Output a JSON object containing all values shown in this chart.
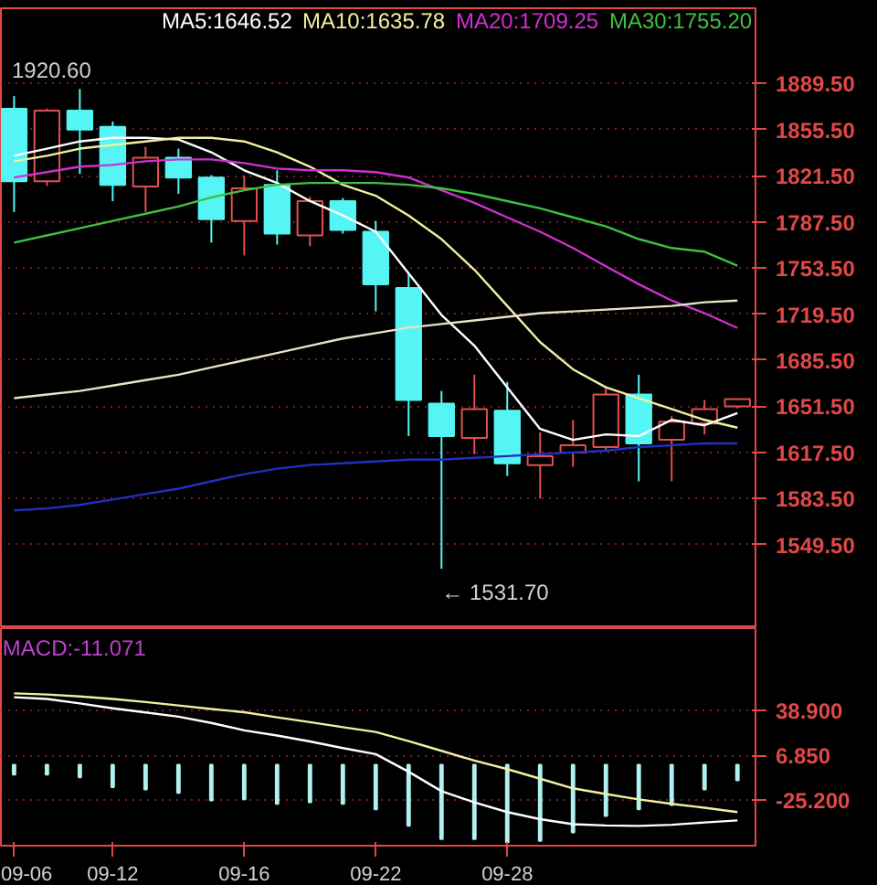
{
  "chart_data": [
    {
      "type": "candlestick",
      "categories": [
        null,
        null,
        null,
        null,
        null,
        null,
        null,
        null,
        null,
        null,
        null,
        null,
        null,
        null,
        null,
        null,
        null,
        null,
        null,
        null,
        null,
        null,
        null
      ],
      "ohlc": [
        [
          1870.8,
          1880.2,
          1794.8,
          1817.5
        ],
        [
          1817.5,
          1871,
          1814,
          1869.5
        ],
        [
          1869.5,
          1885.5,
          1822.8,
          1855.5
        ],
        [
          1857.5,
          1861.5,
          1802.8,
          1814.8
        ],
        [
          1813.5,
          1842.8,
          1794.8,
          1834.8
        ],
        [
          1834.8,
          1841.5,
          1808.2,
          1820.2
        ],
        [
          1820.2,
          1822,
          1772.2,
          1789.5
        ],
        [
          1788.2,
          1821.5,
          1762.8,
          1812.2
        ],
        [
          1814.8,
          1825.5,
          1770.8,
          1778.8
        ],
        [
          1777.5,
          1806,
          1769.5,
          1802.8
        ],
        [
          1802.8,
          1805,
          1778.8,
          1781.5
        ],
        [
          1780.2,
          1788.2,
          1721.5,
          1741.5
        ],
        [
          1738.8,
          1749.5,
          1629.5,
          1656.2
        ],
        [
          1653.5,
          1662.8,
          1531.7,
          1629.5
        ],
        [
          1628.2,
          1674.8,
          1616.2,
          1649.5
        ],
        [
          1648.2,
          1669.5,
          1600.2,
          1609.5
        ],
        [
          1608.2,
          1632.2,
          1583.5,
          1614.8
        ],
        [
          1617.5,
          1641.5,
          1607,
          1622.8
        ],
        [
          1621.5,
          1665.5,
          1618,
          1660.2
        ],
        [
          1660.2,
          1674.8,
          1596.2,
          1624.2
        ],
        [
          1626.8,
          1644.2,
          1596.2,
          1640.2
        ],
        [
          1638.8,
          1656.2,
          1630.8,
          1649.5
        ],
        [
          1651.5,
          1657,
          1650,
          1656.8
        ]
      ],
      "colors": [
        "#55f5f5",
        "#e05050",
        "#55f5f5",
        "#55f5f5",
        "#e05050",
        "#55f5f5",
        "#55f5f5",
        "#e05050",
        "#55f5f5",
        "#e05050",
        "#55f5f5",
        "#55f5f5",
        "#55f5f5",
        "#55f5f5",
        "#e05050",
        "#55f5f5",
        "#e05050",
        "#e05050",
        "#e05050",
        "#55f5f5",
        "#e05050",
        "#e05050",
        "#e05050"
      ],
      "series": [
        {
          "type": "line",
          "name": "MA5:1646.52",
          "color": "#ffffff",
          "values": [
            1836.2,
            1841.5,
            1846.8,
            1849.5,
            1849.5,
            1848.2,
            1838.8,
            1825.5,
            1816.2,
            1802.8,
            1792.2,
            1780.2,
            1749.5,
            1718.8,
            1696.2,
            1665.5,
            1634.8,
            1626.8,
            1630.8,
            1629.5,
            1641.5,
            1637.5,
            1646.52
          ]
        },
        {
          "type": "line",
          "name": "MA10:1635.78",
          "color": "#f0f0a0",
          "values": [
            1832.2,
            1836.2,
            1841.5,
            1844.2,
            1846.8,
            1849.5,
            1849.5,
            1846.8,
            1838.8,
            1828.2,
            1814.8,
            1806.8,
            1792.2,
            1774.8,
            1752.2,
            1725.5,
            1698.8,
            1678.8,
            1665.5,
            1657.5,
            1649.5,
            1641.5,
            1635.78
          ]
        },
        {
          "type": "line",
          "name": "MA20:1709.25",
          "color": "#d030d0",
          "values": [
            1820.2,
            1824.2,
            1828.2,
            1829.5,
            1832.2,
            1833.5,
            1833.5,
            1830.8,
            1826.8,
            1825.5,
            1825.5,
            1824.2,
            1820.2,
            1810.8,
            1801.5,
            1790.8,
            1780.2,
            1768.2,
            1754.8,
            1741.5,
            1729.5,
            1720.2,
            1709.25
          ]
        },
        {
          "type": "line",
          "name": "MA30:1755.20",
          "color": "#40c040",
          "values": [
            1772.2,
            1777.5,
            1782.8,
            1788.2,
            1793.5,
            1798.8,
            1805.5,
            1810.8,
            1814.8,
            1816.2,
            1816.2,
            1816.2,
            1814.8,
            1812.2,
            1808.2,
            1802.8,
            1797.5,
            1790.8,
            1784.2,
            1774.8,
            1768.2,
            1765.5,
            1755.2
          ]
        },
        {
          "type": "line",
          "color": "#e8e0c8",
          "values": [
            1657.5,
            1660.2,
            1662.8,
            1666.8,
            1670.8,
            1674.8,
            1680.2,
            1685.5,
            1690.8,
            1696.2,
            1701.5,
            1705.5,
            1709.5,
            1712.2,
            1714.8,
            1717.5,
            1720.2,
            1721.5,
            1722.8,
            1724.2,
            1725.5,
            1728.2,
            1729.5
          ]
        },
        {
          "type": "line",
          "color": "#2030c0",
          "values": [
            1574.8,
            1576.2,
            1578.8,
            1582.8,
            1586.8,
            1590.8,
            1596.2,
            1601.5,
            1605.5,
            1608.2,
            1609.5,
            1610.8,
            1612.2,
            1612.2,
            1613.5,
            1614.8,
            1616.2,
            1617.5,
            1618.8,
            1621.5,
            1622.8,
            1624.2,
            1624.2
          ]
        }
      ],
      "ylim": [
        1488,
        1945
      ],
      "yticks": [
        {
          "value": 1889.5,
          "label": "1889.50"
        },
        {
          "value": 1855.5,
          "label": "1855.50"
        },
        {
          "value": 1821.5,
          "label": "1821.50"
        },
        {
          "value": 1787.5,
          "label": "1787.50"
        },
        {
          "value": 1753.5,
          "label": "1753.50"
        },
        {
          "value": 1719.5,
          "label": "1719.50"
        },
        {
          "value": 1685.5,
          "label": "1685.50"
        },
        {
          "value": 1651.5,
          "label": "1651.50"
        },
        {
          "value": 1617.5,
          "label": "1617.50"
        },
        {
          "value": 1583.5,
          "label": "1583.50"
        },
        {
          "value": 1549.5,
          "label": "1549.50"
        }
      ],
      "grid": "y",
      "tick_labels": "y",
      "annotations": [
        "1920.60",
        "← 1531.70"
      ]
    },
    {
      "type": "bar",
      "title": "MACD:-11.071",
      "categories": [
        "09-06",
        null,
        null,
        "09-12",
        null,
        null,
        null,
        "09-16",
        null,
        null,
        null,
        "09-22",
        null,
        null,
        null,
        "09-28",
        null,
        null,
        null,
        null,
        null,
        null,
        null
      ],
      "series": [
        {
          "type": "bar",
          "color": "#b0f0f0",
          "values": [
            -7.0,
            -7.0,
            -9.0,
            -16.1,
            -17.7,
            -20.1,
            -25.6,
            -24.8,
            -28.0,
            -26.8,
            -28.0,
            -31.9,
            -43.8,
            -53.3,
            -53.3,
            -55.7,
            -54.5,
            -48.5,
            -36.7,
            -31.9,
            -28.8,
            -17.7,
            -11.1
          ]
        },
        {
          "type": "line",
          "color": "#f0f0a0",
          "values": [
            51.2,
            50.4,
            49,
            47.2,
            45,
            42.5,
            40,
            37.7,
            34,
            30.6,
            27,
            23.5,
            17,
            10.0,
            3,
            -3.1,
            -10,
            -16.9,
            -21,
            -24.8,
            -28,
            -30.8,
            -33.9
          ]
        },
        {
          "type": "line",
          "color": "#ffffff",
          "values": [
            48.4,
            47.2,
            44,
            40.5,
            37.5,
            34.5,
            30,
            24.7,
            21,
            16.7,
            12,
            7.6,
            -5.0,
            -18.9,
            -27,
            -33.9,
            -39,
            -42.6,
            -43.5,
            -43.8,
            -43,
            -41.4,
            -39.9
          ]
        }
      ],
      "ylim": [
        -58,
        98
      ],
      "yticks": [
        {
          "value": 38.9,
          "label": "38.900"
        },
        {
          "value": 6.85,
          "label": "6.850"
        },
        {
          "value": -25.2,
          "label": "-25.200"
        }
      ],
      "grid": "y"
    }
  ]
}
